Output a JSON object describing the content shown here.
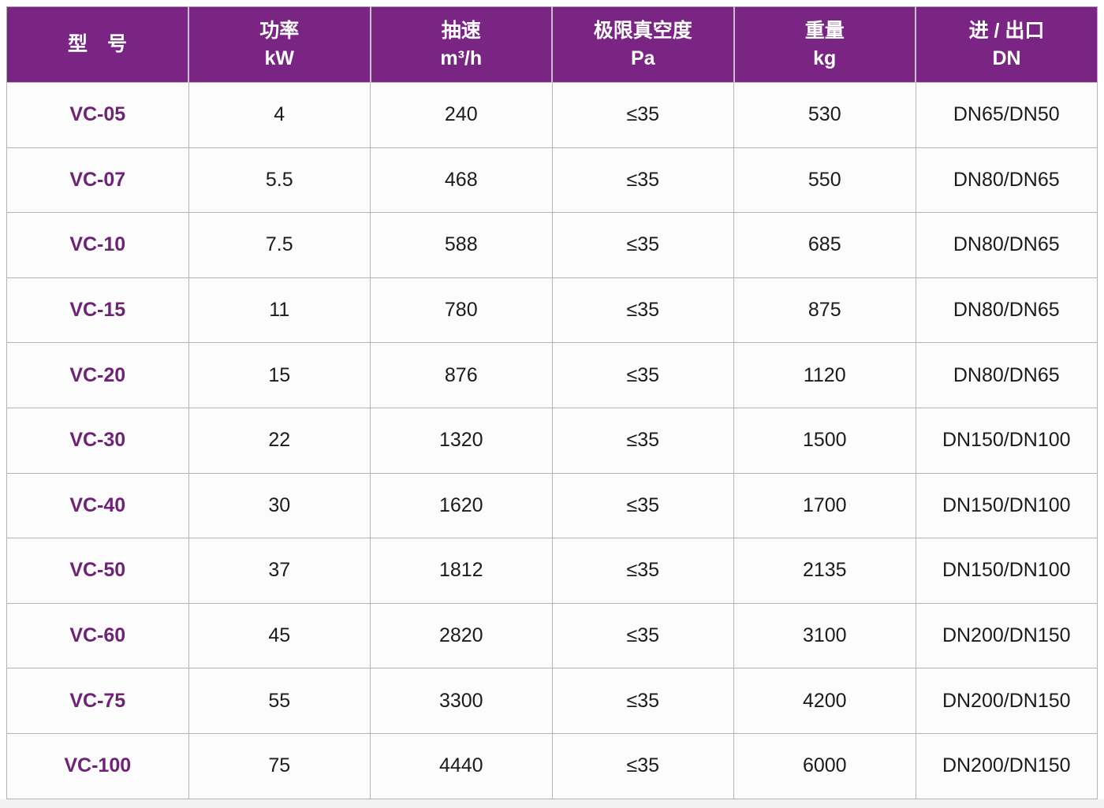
{
  "colors": {
    "header_bg": "#7a2484",
    "header_text": "#ffffff",
    "model_text": "#6f2277",
    "body_text": "#1b1b1b",
    "grid_line": "#b4b4b4",
    "row_bg": "#fcfcfc"
  },
  "table": {
    "columns": [
      {
        "id": "model",
        "line1": "型　号",
        "line2": ""
      },
      {
        "id": "power",
        "line1": "功率",
        "line2": "kW"
      },
      {
        "id": "speed",
        "line1": "抽速",
        "line2": "m³/h"
      },
      {
        "id": "vacuum",
        "line1": "极限真空度",
        "line2": "Pa"
      },
      {
        "id": "weight",
        "line1": "重量",
        "line2": "kg"
      },
      {
        "id": "port",
        "line1": "进 / 出口",
        "line2": "DN"
      }
    ],
    "rows": [
      {
        "model": "VC-05",
        "power": "4",
        "speed": "240",
        "vacuum": "≤35",
        "weight": "530",
        "port": "DN65/DN50"
      },
      {
        "model": "VC-07",
        "power": "5.5",
        "speed": "468",
        "vacuum": "≤35",
        "weight": "550",
        "port": "DN80/DN65"
      },
      {
        "model": "VC-10",
        "power": "7.5",
        "speed": "588",
        "vacuum": "≤35",
        "weight": "685",
        "port": "DN80/DN65"
      },
      {
        "model": "VC-15",
        "power": "11",
        "speed": "780",
        "vacuum": "≤35",
        "weight": "875",
        "port": "DN80/DN65"
      },
      {
        "model": "VC-20",
        "power": "15",
        "speed": "876",
        "vacuum": "≤35",
        "weight": "1120",
        "port": "DN80/DN65"
      },
      {
        "model": "VC-30",
        "power": "22",
        "speed": "1320",
        "vacuum": "≤35",
        "weight": "1500",
        "port": "DN150/DN100"
      },
      {
        "model": "VC-40",
        "power": "30",
        "speed": "1620",
        "vacuum": "≤35",
        "weight": "1700",
        "port": "DN150/DN100"
      },
      {
        "model": "VC-50",
        "power": "37",
        "speed": "1812",
        "vacuum": "≤35",
        "weight": "2135",
        "port": "DN150/DN100"
      },
      {
        "model": "VC-60",
        "power": "45",
        "speed": "2820",
        "vacuum": "≤35",
        "weight": "3100",
        "port": "DN200/DN150"
      },
      {
        "model": "VC-75",
        "power": "55",
        "speed": "3300",
        "vacuum": "≤35",
        "weight": "4200",
        "port": "DN200/DN150"
      },
      {
        "model": "VC-100",
        "power": "75",
        "speed": "4440",
        "vacuum": "≤35",
        "weight": "6000",
        "port": "DN200/DN150"
      }
    ]
  }
}
